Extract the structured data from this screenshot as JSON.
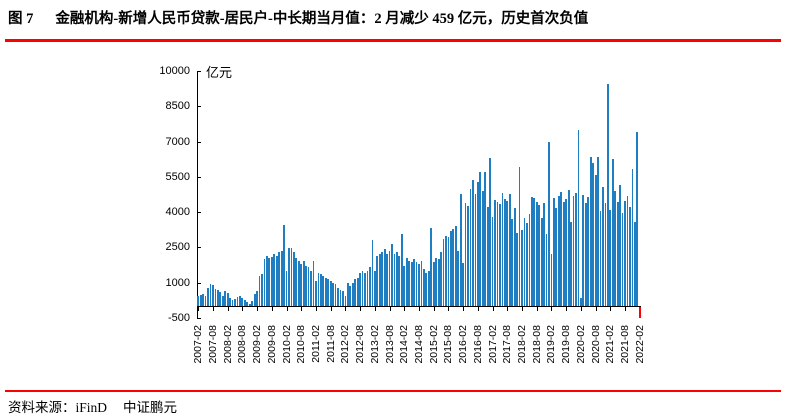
{
  "title": {
    "figure_label": "图 7",
    "text": "金融机构-新增人民币贷款-居民户-中长期当月值：2 月减少 459 亿元，历史首次负值"
  },
  "footer": {
    "source_label": "资料来源：iFinD",
    "org": "中证鹏元"
  },
  "colors": {
    "bar": "#1F7EC2",
    "negative_bar": "#FF0000",
    "accent_line": "#FE0000",
    "axis": "#000000"
  },
  "chart_data": {
    "type": "bar",
    "title": "金融机构-新增人民币贷款-居民户-中长期当月值",
    "unit_label": "亿元",
    "ylim": [
      -500,
      10000
    ],
    "yticks": [
      "10000",
      "8500",
      "7000",
      "5500",
      "4000",
      "2500",
      "1000",
      "-500"
    ],
    "ytick_values": [
      10000,
      8500,
      7000,
      5500,
      4000,
      2500,
      1000,
      -500
    ],
    "grid": false,
    "legend": "none",
    "x_start": "2007-02",
    "x_end": "2022-02",
    "xtick_every_n_bars": 6,
    "xtick_labels": [
      "2007-02",
      "2007-08",
      "2008-02",
      "2008-08",
      "2009-02",
      "2009-08",
      "2010-02",
      "2010-08",
      "2011-02",
      "2011-08",
      "2012-02",
      "2012-08",
      "2013-02",
      "2013-08",
      "2014-02",
      "2014-08",
      "2015-02",
      "2015-08",
      "2016-02",
      "2016-08",
      "2017-02",
      "2017-08",
      "2018-02",
      "2018-08",
      "2019-02",
      "2019-08",
      "2020-02",
      "2020-08",
      "2021-02",
      "2021-08",
      "2022-02"
    ],
    "highlight_last_value": -459,
    "values": [
      430,
      470,
      515,
      430,
      786,
      930,
      886,
      715,
      686,
      600,
      430,
      645,
      570,
      357,
      286,
      315,
      400,
      430,
      357,
      286,
      170,
      115,
      215,
      500,
      645,
      1290,
      1360,
      2000,
      2145,
      2070,
      2100,
      2215,
      2140,
      2290,
      2345,
      3440,
      1500,
      2490,
      2460,
      2290,
      2070,
      1930,
      1790,
      1930,
      1720,
      1650,
      1500,
      1930,
      1070,
      1430,
      1360,
      1290,
      1220,
      1150,
      1070,
      1000,
      930,
      790,
      700,
      650,
      430,
      1000,
      860,
      1000,
      1150,
      1220,
      1430,
      1500,
      1430,
      1500,
      1650,
      2800,
      1500,
      2145,
      2200,
      2290,
      2430,
      2200,
      2360,
      2645,
      2200,
      2290,
      2145,
      3060,
      1720,
      2070,
      1930,
      1860,
      2000,
      1860,
      1790,
      1930,
      1570,
      1430,
      1500,
      3345,
      1860,
      2070,
      2000,
      2290,
      2860,
      3000,
      2930,
      3215,
      3290,
      3430,
      2360,
      4780,
      1820,
      4400,
      4280,
      5000,
      5360,
      4770,
      5290,
      5700,
      4890,
      5690,
      4220,
      6290,
      3800,
      4500,
      4440,
      4330,
      4830,
      4540,
      4470,
      4790,
      3710,
      4180,
      3110,
      5910,
      3220,
      3770,
      3540,
      3920,
      4630,
      4580,
      4420,
      4310,
      3730,
      4390,
      3080,
      6970,
      2230,
      4610,
      4170,
      4680,
      4860,
      4420,
      4540,
      4940,
      3590,
      4690,
      4820,
      7490,
      370,
      4740,
      4390,
      4660,
      6350,
      6070,
      5570,
      6360,
      4060,
      5050,
      4390,
      9450,
      4110,
      6240,
      4920,
      4430,
      5160,
      3970,
      4470,
      4670,
      4220,
      5820,
      3560,
      7420,
      -459
    ]
  }
}
